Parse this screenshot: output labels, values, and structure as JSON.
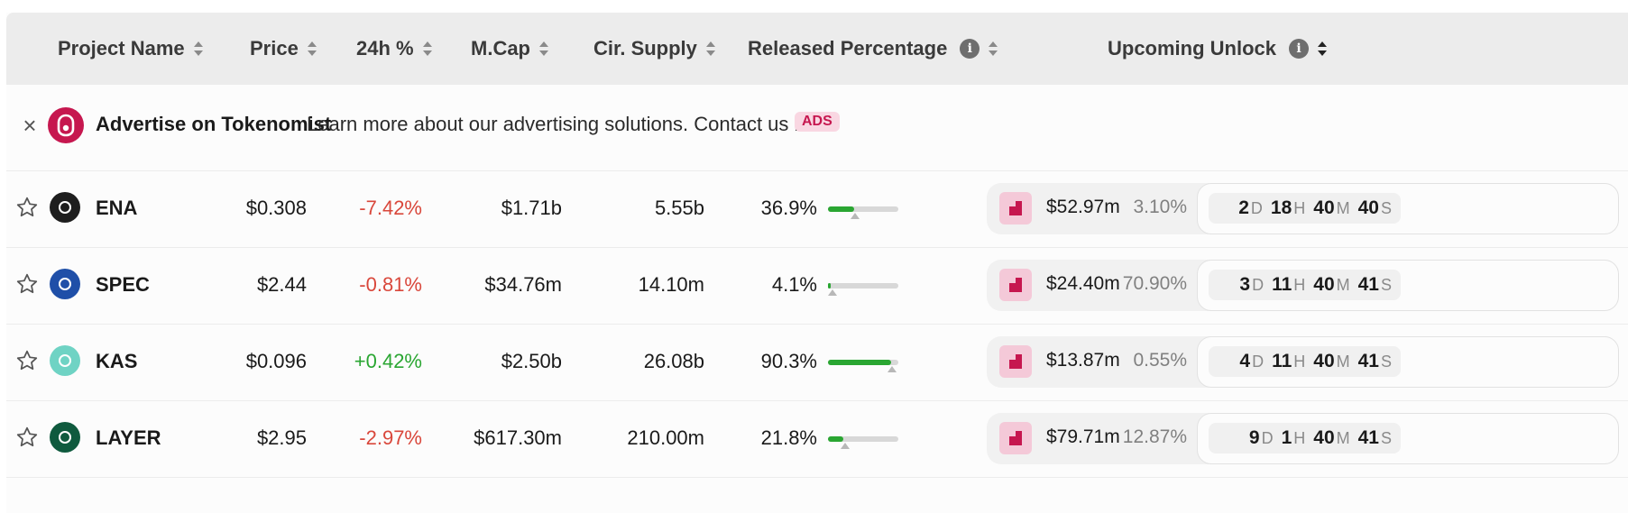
{
  "header": {
    "project_name": "Project Name",
    "price": "Price",
    "change": "24h %",
    "mcap": "M.Cap",
    "supply": "Cir. Supply",
    "released": "Released Percentage",
    "unlock": "Upcoming Unlock",
    "info_glyph": "i"
  },
  "ad": {
    "close_glyph": "×",
    "title": "Advertise on Tokenomist",
    "text": "Learn more about our advertising solutions. Contact us now!",
    "badge": "ADS",
    "brand_color": "#c6174f"
  },
  "rows": [
    {
      "name": "ENA",
      "price": "$0.308",
      "change": "-7.42%",
      "direction": "down",
      "mcap": "$1.71b",
      "supply": "5.55b",
      "released": "36.9%",
      "released_fraction": 0.369,
      "marker_fraction": 0.38,
      "unlock_value": "$52.97m",
      "unlock_pct": "3.10%",
      "timer": {
        "d": "2",
        "h": "18",
        "m": "40",
        "s": "40"
      },
      "icon": "ena-icon",
      "icon_bg": "#1e1e1e"
    },
    {
      "name": "SPEC",
      "price": "$2.44",
      "change": "-0.81%",
      "direction": "down",
      "mcap": "$34.76m",
      "supply": "14.10m",
      "released": "4.1%",
      "released_fraction": 0.041,
      "marker_fraction": 0.06,
      "unlock_value": "$24.40m",
      "unlock_pct": "70.90%",
      "timer": {
        "d": "3",
        "h": "11",
        "m": "40",
        "s": "41"
      },
      "icon": "spec-icon",
      "icon_bg": "#1f4fa8"
    },
    {
      "name": "KAS",
      "price": "$0.096",
      "change": "+0.42%",
      "direction": "up",
      "mcap": "$2.50b",
      "supply": "26.08b",
      "released": "90.3%",
      "released_fraction": 0.903,
      "marker_fraction": 0.91,
      "unlock_value": "$13.87m",
      "unlock_pct": "0.55%",
      "timer": {
        "d": "4",
        "h": "11",
        "m": "40",
        "s": "41"
      },
      "icon": "kas-icon",
      "icon_bg": "#6fd3c4"
    },
    {
      "name": "LAYER",
      "price": "$2.95",
      "change": "-2.97%",
      "direction": "down",
      "mcap": "$617.30m",
      "supply": "210.00m",
      "released": "21.8%",
      "released_fraction": 0.218,
      "marker_fraction": 0.24,
      "unlock_value": "$79.71m",
      "unlock_pct": "12.87%",
      "timer": {
        "d": "9",
        "h": "1",
        "m": "40",
        "s": "41"
      },
      "icon": "layer-icon",
      "icon_bg": "#0f5a3e"
    }
  ],
  "timer_units": {
    "d": "D",
    "h": "H",
    "m": "M",
    "s": "S"
  }
}
